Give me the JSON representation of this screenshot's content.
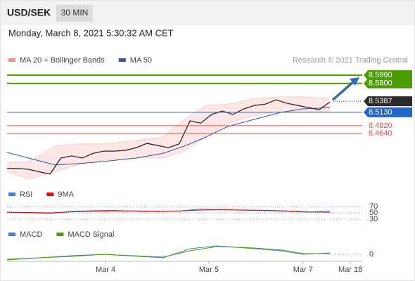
{
  "header": {
    "symbol": "USD/SEK",
    "interval": "30 MIN",
    "timestamp": "Monday, March 8, 2021 5:30:32 AM CET",
    "credit": "Research © 2021 Trading Central"
  },
  "chart_data": [
    {
      "type": "line",
      "xlim": [
        0,
        66
      ],
      "ylim": [
        8.35,
        8.617
      ],
      "series": [
        {
          "name": "MA 20 + Bollinger Bands",
          "color": "#f28b8b",
          "x": [
            0,
            4,
            9,
            13,
            18,
            24,
            29,
            33,
            37,
            41,
            46,
            51,
            55,
            60
          ],
          "upper": [
            8.396,
            8.399,
            8.435,
            8.44,
            8.44,
            8.448,
            8.456,
            8.497,
            8.529,
            8.532,
            8.545,
            8.549,
            8.549,
            8.545
          ],
          "lower": [
            8.375,
            8.358,
            8.375,
            8.391,
            8.402,
            8.407,
            8.407,
            8.423,
            8.456,
            8.488,
            8.505,
            8.516,
            8.513,
            8.516
          ]
        },
        {
          "name": "MA 50",
          "color": "#34589a",
          "x": [
            0,
            4,
            9,
            13,
            18,
            24,
            29,
            33,
            37,
            41,
            46,
            51,
            55,
            60
          ],
          "values": [
            8.42,
            8.407,
            8.391,
            8.394,
            8.399,
            8.407,
            8.418,
            8.435,
            8.456,
            8.48,
            8.497,
            8.513,
            8.521,
            8.524
          ]
        },
        {
          "color": "#2a2a2a",
          "x": [
            0,
            2,
            4,
            6,
            8,
            10,
            12,
            14,
            16,
            18,
            20,
            22,
            24,
            26,
            28,
            30,
            32,
            34,
            36,
            38,
            40,
            42,
            44,
            46,
            48,
            50,
            52,
            54,
            56,
            58,
            60
          ],
          "values": [
            8.383,
            8.383,
            8.381,
            8.375,
            8.37,
            8.407,
            8.412,
            8.407,
            8.418,
            8.423,
            8.423,
            8.425,
            8.431,
            8.441,
            8.436,
            8.431,
            8.44,
            8.493,
            8.488,
            8.508,
            8.516,
            8.508,
            8.521,
            8.529,
            8.532,
            8.542,
            8.534,
            8.529,
            8.524,
            8.519,
            8.537
          ]
        }
      ],
      "levels": [
        {
          "value": 8.599,
          "label": "8.5990",
          "color": "#4c9e00",
          "line": "solid",
          "boxed": true
        },
        {
          "value": 8.58,
          "label": "8.5800",
          "color": "#4c9e00",
          "line": "solid",
          "boxed": true
        },
        {
          "value": 8.5387,
          "label": "8.5387",
          "color": "#2a2a2a",
          "line": "dotted",
          "boxed": true
        },
        {
          "value": 8.513,
          "label": "8.5130",
          "color": "#2266cc",
          "line": "solid",
          "boxed": true
        },
        {
          "value": 8.482,
          "label": "8.4820",
          "color": "#e05050",
          "line": "solid",
          "boxed": false
        },
        {
          "value": 8.464,
          "label": "8.4640",
          "color": "#e05050",
          "line": "solid",
          "boxed": false
        }
      ]
    },
    {
      "type": "line",
      "xlim": [
        0,
        66
      ],
      "ylim": [
        20,
        80
      ],
      "yticks": [
        30,
        50,
        70
      ],
      "series": [
        {
          "name": "RSI",
          "color": "#4a7fd4",
          "x": [
            0,
            4,
            8,
            12,
            16,
            20,
            24,
            28,
            32,
            36,
            40,
            44,
            48,
            52,
            56,
            60
          ],
          "values": [
            52,
            50,
            48,
            55,
            57,
            58,
            55,
            54,
            56,
            62,
            60,
            58,
            57,
            55,
            52,
            56
          ]
        },
        {
          "name": "9MA",
          "color": "#d01010",
          "x": [
            0,
            4,
            8,
            12,
            16,
            20,
            24,
            28,
            32,
            36,
            40,
            44,
            48,
            52,
            56,
            60
          ],
          "values": [
            52,
            51,
            50,
            53,
            55,
            56,
            56,
            55,
            56,
            59,
            60,
            59,
            58,
            56,
            53,
            52
          ]
        }
      ]
    },
    {
      "type": "line",
      "xlim": [
        0,
        66
      ],
      "ylim": [
        -0.01,
        0.02
      ],
      "yticks": [
        0
      ],
      "xticks": [
        {
          "value": 18.3,
          "label": "Mar 4"
        },
        {
          "value": 37.5,
          "label": "Mar 5"
        },
        {
          "value": 55,
          "label": "Mar 7"
        },
        {
          "value": 63.8,
          "label": "Mar 18"
        }
      ],
      "series": [
        {
          "name": "MACD",
          "color": "#4a7fd4",
          "x": [
            0,
            12,
            18,
            29,
            34,
            39,
            46,
            51,
            55,
            60
          ],
          "values": [
            -0.008,
            -0.002,
            0,
            -0.005,
            0.008,
            0.012,
            0.008,
            0.005,
            0,
            0.002
          ]
        },
        {
          "name": "MACD Signal",
          "color": "#4c9e00",
          "x": [
            0,
            12,
            18,
            29,
            34,
            39,
            46,
            51,
            55,
            60
          ],
          "values": [
            -0.007,
            -0.003,
            0,
            -0.004,
            0.005,
            0.011,
            0.009,
            0.006,
            0.001,
            0.001
          ]
        }
      ]
    }
  ]
}
